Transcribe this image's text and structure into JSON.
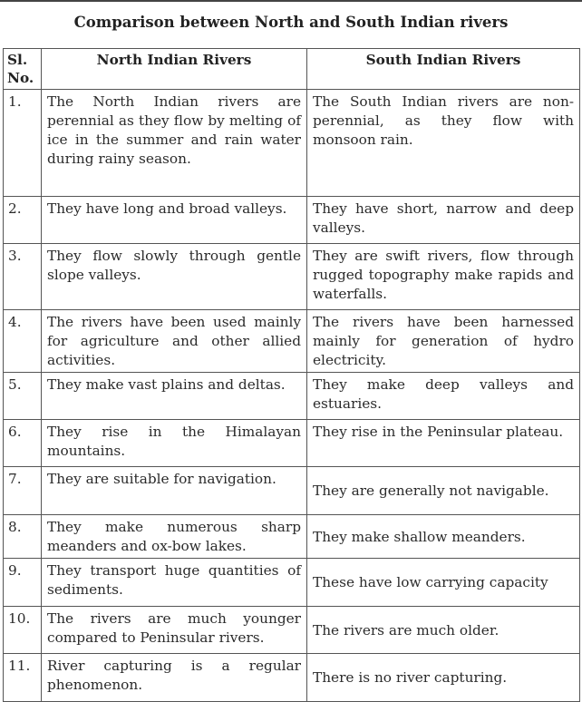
{
  "title": "Comparison between North and South Indian rivers",
  "headers": {
    "sl": "Sl. No.",
    "north": "North Indian Rivers",
    "south": "South Indian Rivers"
  },
  "rows": [
    {
      "sl": "1.",
      "north": "The North Indian rivers are perennial as they flow by melting of ice in the summer and rain water during rainy season.",
      "south": "The South Indian rivers are non-perennial, as they flow with monsoon rain."
    },
    {
      "sl": "2.",
      "north": "They have long and broad valleys.",
      "south": "They have short, narrow and deep valleys."
    },
    {
      "sl": "3.",
      "north": "They flow slowly through gentle slope valleys.",
      "south": "They are swift rivers, flow through rugged topography make rapids and waterfalls."
    },
    {
      "sl": "4.",
      "north": "The rivers have been used mainly for agriculture and other allied activities.",
      "south": "The rivers have been harnessed mainly for generation of hydro electricity."
    },
    {
      "sl": "5.",
      "north": "They make vast plains and deltas.",
      "south": "They make deep valleys and estuaries."
    },
    {
      "sl": "6.",
      "north": "They rise in the Himalayan mountains.",
      "south": "They rise in the Peninsular plateau."
    },
    {
      "sl": "7.",
      "north": "They are suitable for navigation.",
      "south": "They are generally not navigable."
    },
    {
      "sl": "8.",
      "north": "They make numerous sharp meanders and ox-bow lakes.",
      "south": "They make shallow meanders."
    },
    {
      "sl": "9.",
      "north": "They transport huge quantities of sediments.",
      "south": "These have low carrying capacity"
    },
    {
      "sl": "10.",
      "north": "The rivers are much younger compared to Peninsular rivers.",
      "south": "The rivers are much older."
    },
    {
      "sl": "11.",
      "north": "River capturing is a regular phenomenon.",
      "south": "There is no river capturing."
    }
  ]
}
